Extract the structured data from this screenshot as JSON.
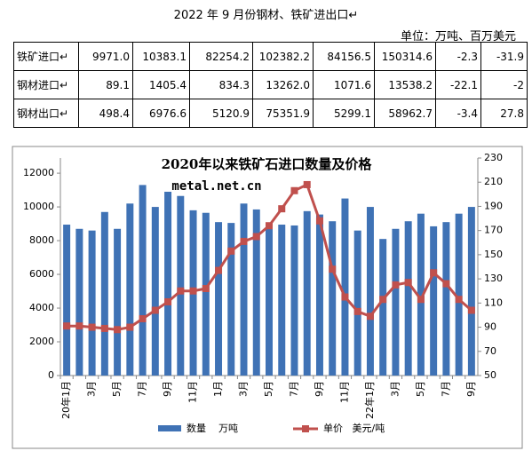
{
  "header": {
    "title": "2022 年 9 月份钢材、铁矿进出口↵",
    "unit": "单位：万吨、百万美元"
  },
  "table": {
    "rows": [
      [
        "铁矿进口↵",
        "9971.0",
        "10383.1",
        "82254.2",
        "102382.2",
        "84156.5",
        "150314.6",
        "-2.3",
        "-31.9"
      ],
      [
        "钢材进口↵",
        "89.1",
        "1405.4",
        "834.3",
        "13262.0",
        "1071.6",
        "13538.2",
        "-22.1",
        "-2"
      ],
      [
        "钢材出口↵",
        "498.4",
        "6976.6",
        "5120.9",
        "75351.9",
        "5299.1",
        "58962.7",
        "-3.4",
        "27.8"
      ]
    ]
  },
  "chart_data": {
    "type": "bar_line",
    "title": "2020年以来铁矿石进口数量及价格",
    "watermark": "metal.net.cn",
    "categories": [
      "20年1月",
      null,
      "3月",
      null,
      "5月",
      null,
      "7月",
      null,
      "9月",
      null,
      "11月",
      null,
      "1月",
      null,
      "3月",
      null,
      "5月",
      null,
      "7月",
      null,
      "9月",
      null,
      "11月",
      null,
      "22年1月",
      null,
      "3月",
      null,
      "5月",
      null,
      "7月",
      null,
      "9月"
    ],
    "series": [
      {
        "name": "数量    万吨",
        "color": "#3f72b5",
        "values": [
          8950,
          8700,
          8600,
          9700,
          8700,
          10200,
          11300,
          10000,
          10900,
          10650,
          9800,
          9650,
          9100,
          9050,
          10200,
          9850,
          8950,
          8950,
          8900,
          9750,
          9550,
          9150,
          10500,
          8600,
          10000,
          8100,
          8700,
          9150,
          9600,
          8850,
          9100,
          9600,
          10000
        ]
      },
      {
        "name": "单价   美元/吨",
        "color": "#c0504d",
        "axis": "y2",
        "values": [
          91,
          91,
          90,
          89,
          88,
          90,
          97,
          104,
          111,
          120,
          120,
          122,
          137,
          153,
          161,
          165,
          174,
          188,
          203,
          208,
          178,
          138,
          115,
          103,
          99,
          113,
          125,
          127,
          113,
          135,
          126,
          113,
          104
        ]
      }
    ],
    "ylim": [
      0,
      12900
    ],
    "yticks": [
      0,
      2000,
      4000,
      6000,
      8000,
      10000,
      12000
    ],
    "y2lim": [
      50,
      230
    ],
    "y2ticks": [
      50,
      70,
      90,
      110,
      130,
      150,
      170,
      190,
      210,
      230
    ]
  }
}
